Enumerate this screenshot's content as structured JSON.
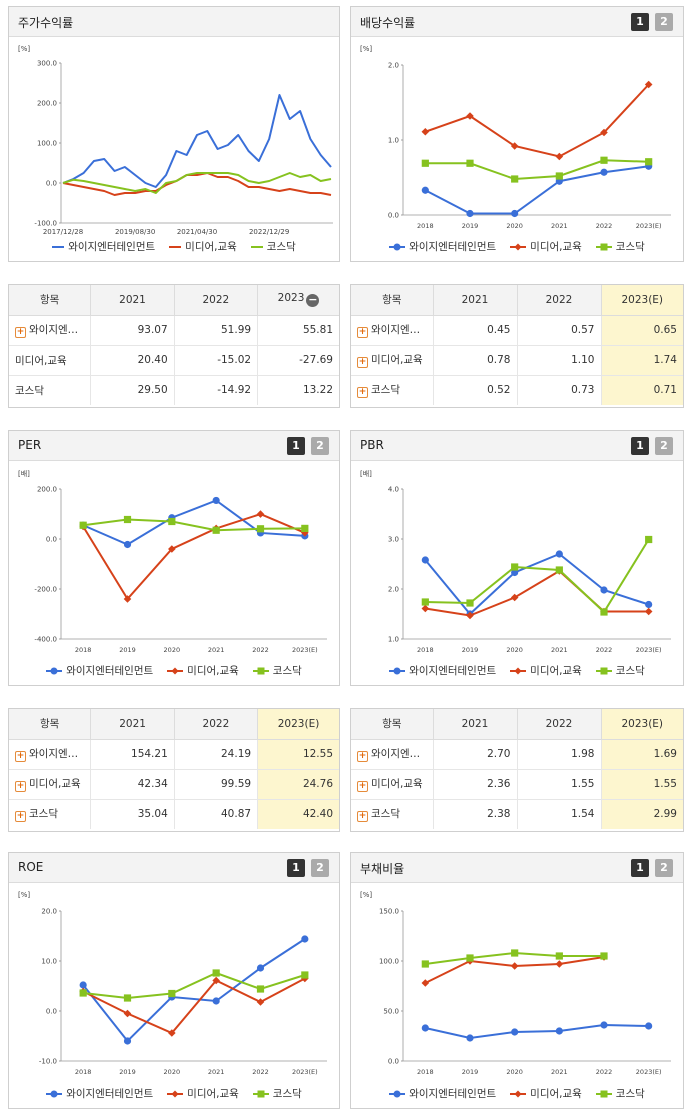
{
  "colors": {
    "s1": "#3a6fd8",
    "s2": "#d6421a",
    "s3": "#86c21f"
  },
  "pager": [
    "1",
    "2"
  ],
  "legend": [
    "와이지엔터테인먼트",
    "미디어,교육",
    "코스닥"
  ],
  "panels": {
    "price": {
      "title": "주가수익률",
      "unit": "[%]",
      "chart_data": {
        "type": "line",
        "x_ticks": [
          "2017/12/28",
          "2019/08/30",
          "2021/04/30",
          "2022/12/29"
        ],
        "y_ticks": [
          "300.0",
          "200.0",
          "100.0",
          "0.0",
          "-100.0"
        ],
        "ylim": [
          -100,
          300
        ],
        "x": [
          "2017-12",
          "2018-03",
          "2018-06",
          "2018-09",
          "2018-12",
          "2019-03",
          "2019-06",
          "2019-09",
          "2019-12",
          "2020-03",
          "2020-06",
          "2020-09",
          "2020-12",
          "2021-03",
          "2021-06",
          "2021-09",
          "2021-12",
          "2022-03",
          "2022-06",
          "2022-09",
          "2022-12",
          "2023-01",
          "2023-03",
          "2023-05",
          "2023-07",
          "2023-09",
          "2023-11"
        ],
        "series": [
          {
            "name": "와이지엔터테인먼트",
            "values": [
              0,
              10,
              25,
              55,
              60,
              30,
              40,
              20,
              0,
              -10,
              20,
              80,
              70,
              120,
              130,
              85,
              95,
              120,
              80,
              55,
              110,
              220,
              160,
              180,
              110,
              70,
              40
            ]
          },
          {
            "name": "미디어,교육",
            "values": [
              0,
              -5,
              -10,
              -15,
              -20,
              -30,
              -25,
              -25,
              -20,
              -20,
              -5,
              5,
              20,
              20,
              25,
              15,
              15,
              5,
              -10,
              -10,
              -15,
              -20,
              -15,
              -20,
              -25,
              -25,
              -30
            ]
          },
          {
            "name": "코스닥",
            "values": [
              0,
              8,
              5,
              0,
              -5,
              -10,
              -15,
              -20,
              -15,
              -25,
              0,
              5,
              20,
              25,
              25,
              25,
              25,
              20,
              5,
              0,
              5,
              15,
              25,
              15,
              20,
              5,
              10
            ]
          }
        ]
      }
    },
    "dividend": {
      "title": "배당수익률",
      "unit": "[%]",
      "chart_data": {
        "type": "line",
        "categories": [
          "2018",
          "2019",
          "2020",
          "2021",
          "2022",
          "2023(E)"
        ],
        "y_ticks": [
          "2.0",
          "1.0",
          "0.0"
        ],
        "ylim": [
          0,
          2
        ],
        "series": [
          {
            "name": "와이지엔터테인먼트",
            "values": [
              0.33,
              0.02,
              0.02,
              0.45,
              0.57,
              0.65
            ]
          },
          {
            "name": "미디어,교육",
            "values": [
              1.11,
              1.32,
              0.92,
              0.78,
              1.1,
              1.74
            ]
          },
          {
            "name": "코스닥",
            "values": [
              0.69,
              0.69,
              0.48,
              0.52,
              0.73,
              0.71
            ]
          }
        ]
      }
    },
    "per": {
      "title": "PER",
      "unit": "[배]",
      "chart_data": {
        "type": "line",
        "categories": [
          "2018",
          "2019",
          "2020",
          "2021",
          "2022",
          "2023(E)"
        ],
        "y_ticks": [
          "200.0",
          "0.0",
          "-200.0",
          "-400.0"
        ],
        "ylim": [
          -400,
          200
        ],
        "series": [
          {
            "name": "와이지엔터테인먼트",
            "values": [
              55,
              -22,
              85,
              154.21,
              24.19,
              12.55
            ]
          },
          {
            "name": "미디어,교육",
            "values": [
              50,
              -240,
              -40,
              42.34,
              99.59,
              24.76
            ]
          },
          {
            "name": "코스닥",
            "values": [
              55,
              78,
              70,
              35.04,
              40.87,
              42.4
            ]
          }
        ]
      }
    },
    "pbr": {
      "title": "PBR",
      "unit": "[배]",
      "chart_data": {
        "type": "line",
        "categories": [
          "2018",
          "2019",
          "2020",
          "2021",
          "2022",
          "2023(E)"
        ],
        "y_ticks": [
          "4.0",
          "3.0",
          "2.0",
          "1.0"
        ],
        "ylim": [
          1,
          4
        ],
        "series": [
          {
            "name": "와이지엔터테인먼트",
            "values": [
              2.58,
              1.5,
              2.33,
              2.7,
              1.98,
              1.69
            ]
          },
          {
            "name": "미디어,교육",
            "values": [
              1.61,
              1.47,
              1.83,
              2.36,
              1.55,
              1.55
            ]
          },
          {
            "name": "코스닥",
            "values": [
              1.74,
              1.72,
              2.44,
              2.38,
              1.54,
              2.99
            ]
          }
        ]
      }
    },
    "roe": {
      "title": "ROE",
      "unit": "[%]",
      "chart_data": {
        "type": "line",
        "categories": [
          "2018",
          "2019",
          "2020",
          "2021",
          "2022",
          "2023(E)"
        ],
        "y_ticks": [
          "20.0",
          "10.0",
          "0.0",
          "-10.0"
        ],
        "ylim": [
          -10,
          20
        ],
        "series": [
          {
            "name": "와이지엔터테인먼트",
            "values": [
              5.2,
              -6.0,
              2.8,
              2.0,
              8.6,
              14.4
            ]
          },
          {
            "name": "미디어,교육",
            "values": [
              3.9,
              -0.5,
              -4.4,
              6.1,
              1.8,
              6.5
            ]
          },
          {
            "name": "코스닥",
            "values": [
              3.6,
              2.6,
              3.5,
              7.6,
              4.4,
              7.2
            ]
          }
        ]
      }
    },
    "debt": {
      "title": "부채비율",
      "unit": "[%]",
      "chart_data": {
        "type": "line",
        "categories": [
          "2018",
          "2019",
          "2020",
          "2021",
          "2022",
          "2023(E)"
        ],
        "y_ticks": [
          "150.0",
          "100.0",
          "50.0",
          "0.0"
        ],
        "ylim": [
          0,
          150
        ],
        "series": [
          {
            "name": "와이지엔터테인먼트",
            "values": [
              33,
              23,
              29,
              30,
              36,
              35
            ]
          },
          {
            "name": "미디어,교육",
            "values": [
              78,
              100,
              95,
              97,
              104,
              null
            ]
          },
          {
            "name": "코스닥",
            "values": [
              97,
              103,
              108,
              105,
              105,
              null
            ]
          }
        ]
      }
    }
  },
  "tables": {
    "price": {
      "headers": [
        "항목",
        "2021",
        "2022",
        "2023"
      ],
      "rows": [
        {
          "name": "와이지엔…",
          "plus": true,
          "values": [
            "93.07",
            "51.99",
            "55.81"
          ]
        },
        {
          "name": "미디어,교육",
          "plus": false,
          "values": [
            "20.40",
            "-15.02",
            "-27.69"
          ]
        },
        {
          "name": "코스닥",
          "plus": false,
          "values": [
            "29.50",
            "-14.92",
            "13.22"
          ]
        }
      ]
    },
    "dividend": {
      "headers": [
        "항목",
        "2021",
        "2022",
        "2023(E)"
      ],
      "rows": [
        {
          "name": "와이지엔…",
          "plus": true,
          "values": [
            "0.45",
            "0.57",
            "0.65"
          ]
        },
        {
          "name": "미디어,교육",
          "plus": true,
          "values": [
            "0.78",
            "1.10",
            "1.74"
          ]
        },
        {
          "name": "코스닥",
          "plus": true,
          "values": [
            "0.52",
            "0.73",
            "0.71"
          ]
        }
      ]
    },
    "per": {
      "headers": [
        "항목",
        "2021",
        "2022",
        "2023(E)"
      ],
      "rows": [
        {
          "name": "와이지엔…",
          "plus": true,
          "values": [
            "154.21",
            "24.19",
            "12.55"
          ]
        },
        {
          "name": "미디어,교육",
          "plus": true,
          "values": [
            "42.34",
            "99.59",
            "24.76"
          ]
        },
        {
          "name": "코스닥",
          "plus": true,
          "values": [
            "35.04",
            "40.87",
            "42.40"
          ]
        }
      ]
    },
    "pbr": {
      "headers": [
        "항목",
        "2021",
        "2022",
        "2023(E)"
      ],
      "rows": [
        {
          "name": "와이지엔…",
          "plus": true,
          "values": [
            "2.70",
            "1.98",
            "1.69"
          ]
        },
        {
          "name": "미디어,교육",
          "plus": true,
          "values": [
            "2.36",
            "1.55",
            "1.55"
          ]
        },
        {
          "name": "코스닥",
          "plus": true,
          "values": [
            "2.38",
            "1.54",
            "2.99"
          ]
        }
      ]
    }
  }
}
